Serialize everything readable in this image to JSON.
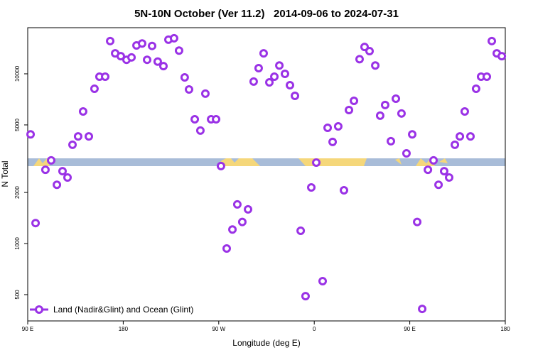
{
  "chart_data": {
    "type": "scatter",
    "title": "5N-10N October (Ver 11.2)   2014-09-06 to 2024-07-31",
    "xlabel": "Longitude (deg E)",
    "ylabel": "N Total",
    "log_y": true,
    "legend": "bottom-left",
    "xlim": [
      90,
      540
    ],
    "xticks": [
      {
        "value": 90,
        "label": "90 E"
      },
      {
        "value": 180,
        "label": "180"
      },
      {
        "value": 270,
        "label": "90 W"
      },
      {
        "value": 360,
        "label": "0"
      },
      {
        "value": 450,
        "label": "90 E"
      },
      {
        "value": 540,
        "label": "180"
      }
    ],
    "ylim": [
      350,
      18700
    ],
    "yticks": [
      500,
      1000,
      2000,
      5000,
      10000
    ],
    "series": [
      {
        "name": "Land (Nadir&Glint) and Ocean (Glint)",
        "color": "#9a32e6",
        "x": [
          92.7,
          97.4,
          106.7,
          112.1,
          117.5,
          122.8,
          127.5,
          132.2,
          137.5,
          142.2,
          147.6,
          152.9,
          157.6,
          163,
          167.7,
          172.4,
          177.7,
          183.1,
          187.8,
          192.5,
          197.8,
          202.5,
          207.2,
          212.5,
          217.9,
          222.6,
          227.9,
          232.6,
          237.9,
          242,
          247.4,
          252.7,
          257.4,
          262.8,
          267.5,
          272.1,
          277.5,
          282.9,
          287.5,
          292.2,
          297.6,
          302.9,
          307.6,
          312.3,
          317.7,
          322.4,
          327.1,
          332.4,
          337.1,
          341.8,
          347.2,
          351.8,
          357.2,
          361.9,
          367.9,
          372.6,
          377.3,
          382.6,
          388,
          392.7,
          397.4,
          402.7,
          407.4,
          412.1,
          417.5,
          422.1,
          426.8,
          432.2,
          436.9,
          442.2,
          446.9,
          452.3,
          457,
          461.7,
          467.1,
          472.4,
          477.1,
          482.4,
          487.1,
          492.5,
          497.2,
          501.8,
          507.2,
          512.5,
          517.2,
          522.6,
          527.3,
          532,
          536.7
        ],
        "values": [
          4400,
          1320,
          2720,
          3090,
          2220,
          2670,
          2450,
          3820,
          4280,
          6000,
          4280,
          8170,
          9620,
          9620,
          15600,
          13200,
          12700,
          12100,
          12500,
          14700,
          15100,
          12100,
          14600,
          11800,
          11100,
          15900,
          16200,
          13700,
          9530,
          8090,
          5400,
          4630,
          7640,
          5400,
          5400,
          2860,
          935,
          1210,
          1700,
          1340,
          1590,
          9000,
          10800,
          13200,
          8910,
          9620,
          11200,
          10000,
          8570,
          7420,
          1190,
          490,
          2140,
          3000,
          600,
          4810,
          3970,
          4900,
          2060,
          6120,
          6930,
          12200,
          14400,
          13600,
          11200,
          5670,
          6550,
          4010,
          7140,
          5840,
          3400,
          4400,
          1340,
          412,
          2720,
          3090,
          2220,
          2670,
          2450,
          3820,
          4280,
          6000,
          4280,
          8170,
          9620,
          9620,
          15600,
          13200,
          12700
        ]
      }
    ]
  }
}
